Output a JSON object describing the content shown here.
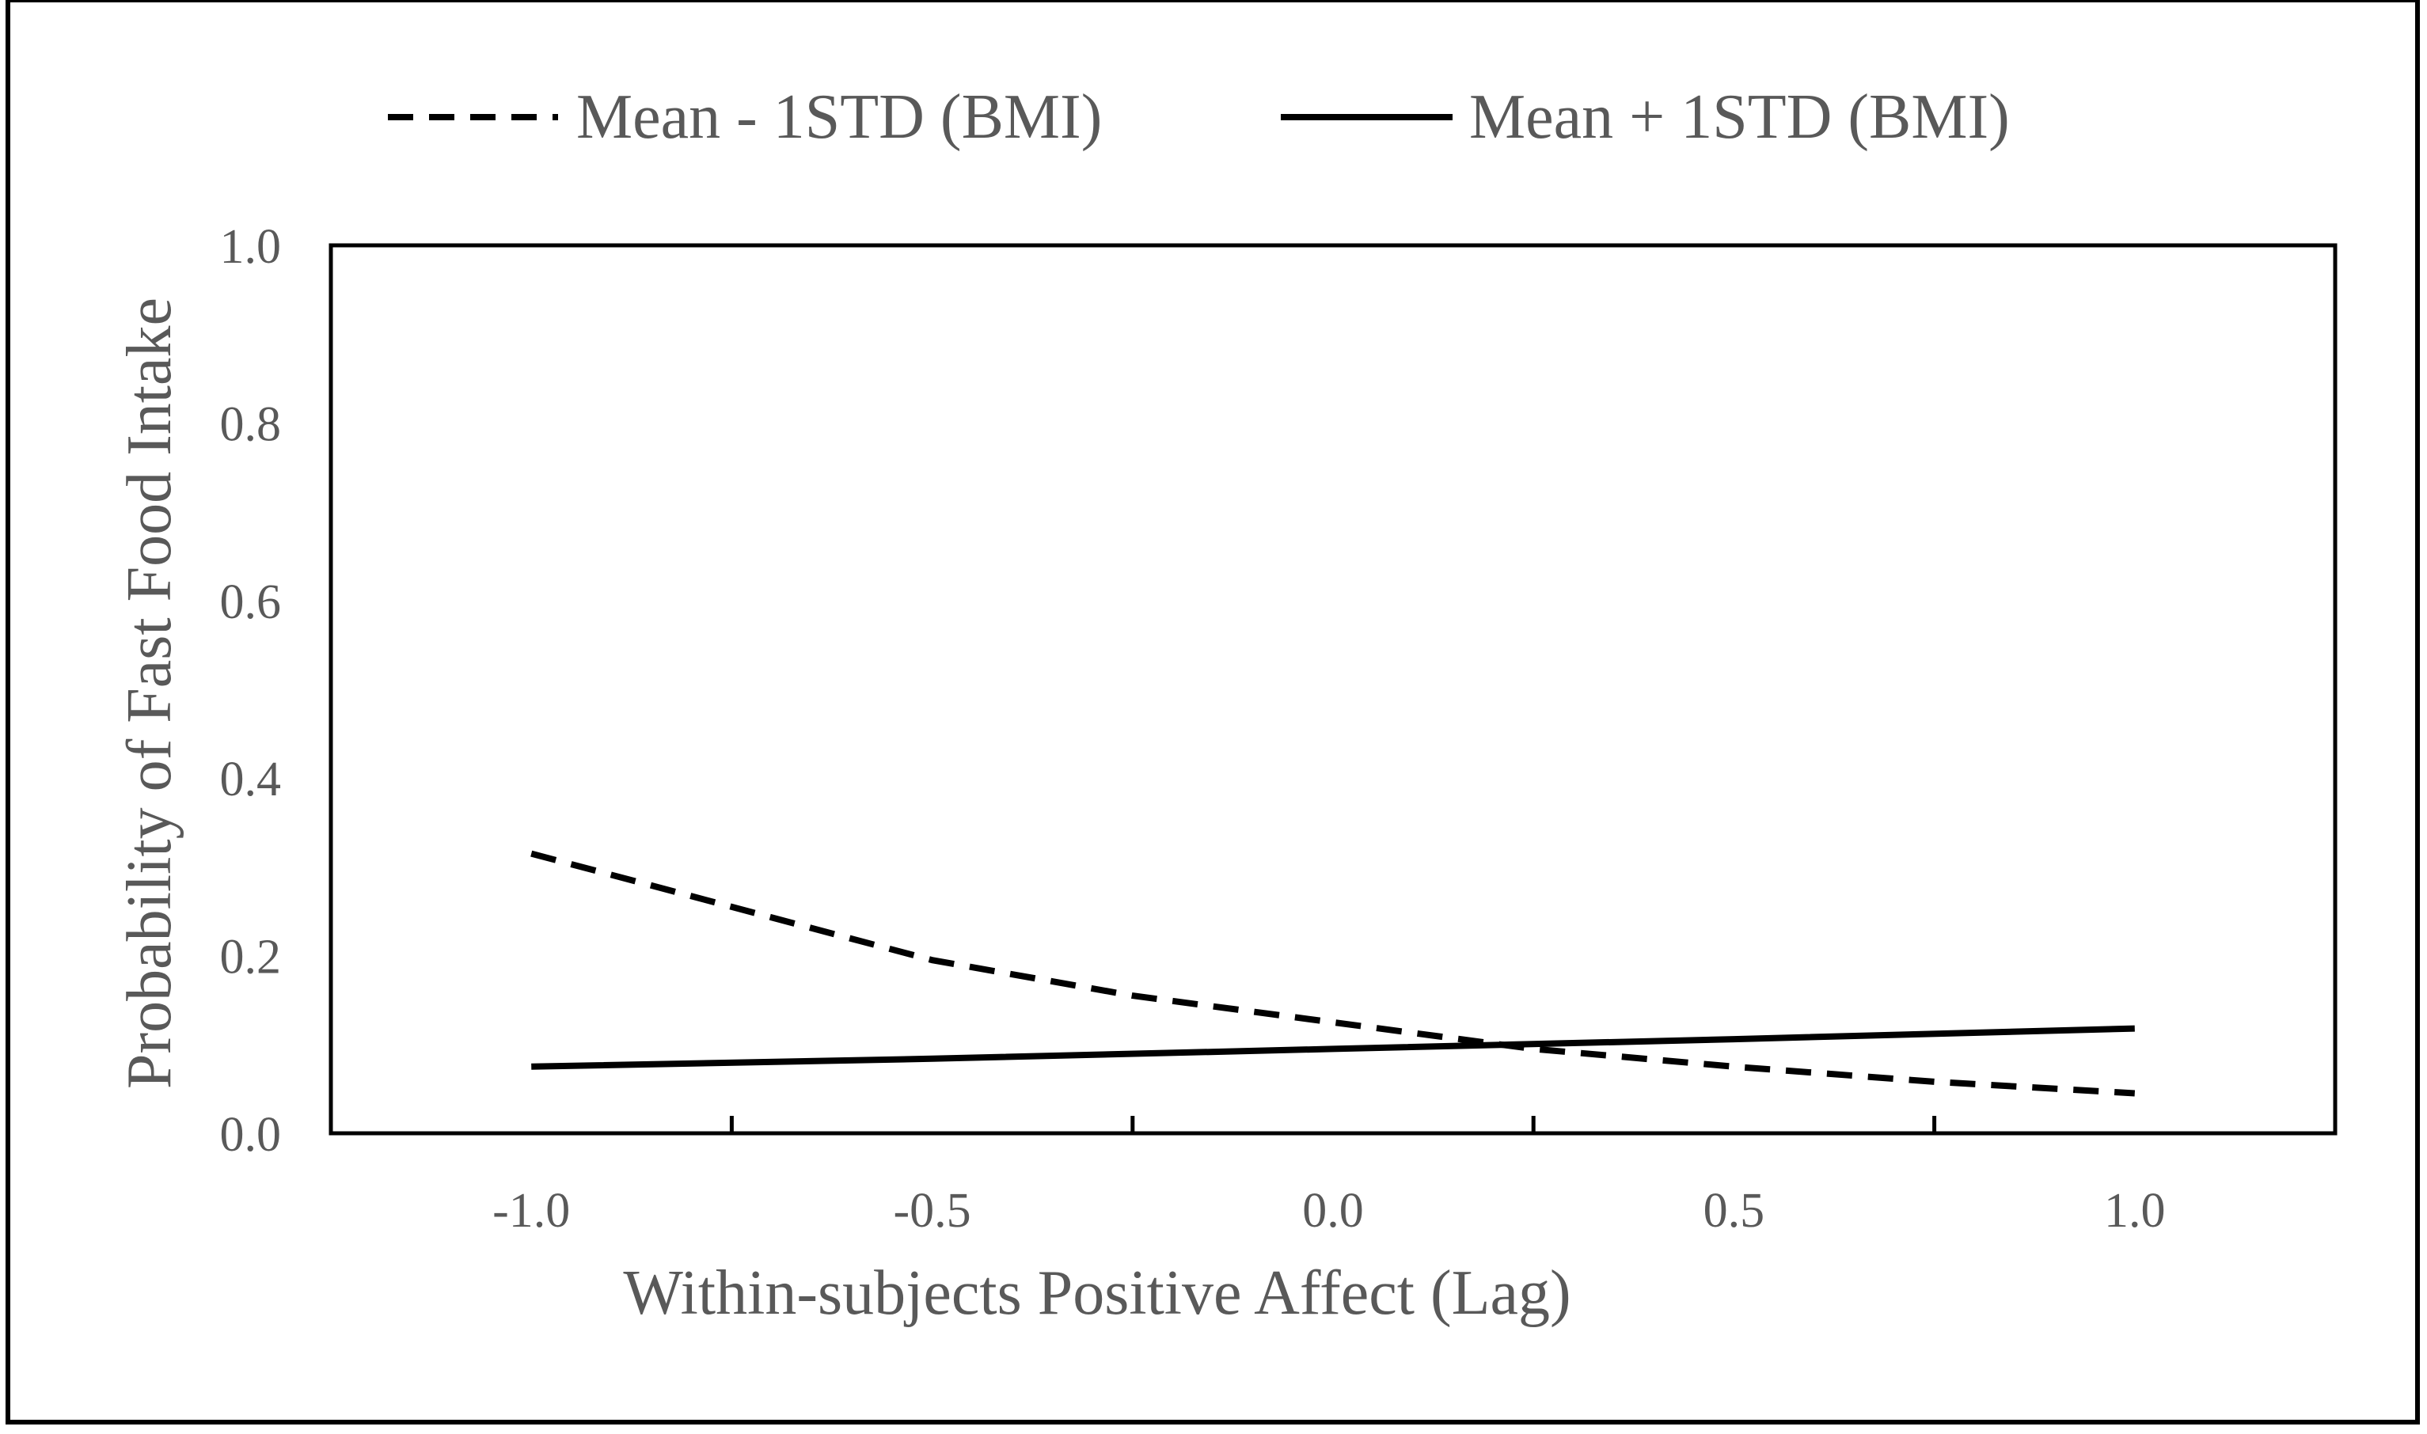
{
  "chart_data": {
    "type": "line",
    "title": "",
    "xlabel": "Within-subjects Positive Affect (Lag)",
    "ylabel": "Probability of Fast Food Intake",
    "xlim": [
      -1.25,
      1.25
    ],
    "ylim": [
      0.0,
      1.0
    ],
    "x_ticks": [
      -1.0,
      -0.5,
      0.0,
      0.5,
      1.0
    ],
    "x_tick_labels": [
      "-1.0",
      "-0.5",
      "0.0",
      "0.5",
      "1.0"
    ],
    "y_ticks": [
      0.0,
      0.2,
      0.4,
      0.6,
      0.8,
      1.0
    ],
    "y_tick_labels": [
      "0.0",
      "0.2",
      "0.4",
      "0.6",
      "0.8",
      "1.0"
    ],
    "grid": false,
    "legend_position": "top",
    "series": [
      {
        "name": "Mean - 1STD (BMI)",
        "style": "dashed",
        "color": "#000000",
        "x": [
          -1.0,
          -0.75,
          -0.5,
          -0.25,
          0.0,
          0.25,
          0.5,
          0.75,
          1.0
        ],
        "y": [
          0.315,
          0.255,
          0.195,
          0.155,
          0.125,
          0.095,
          0.075,
          0.058,
          0.045
        ]
      },
      {
        "name": "Mean + 1STD (BMI)",
        "style": "solid",
        "color": "#000000",
        "x": [
          -1.0,
          -0.5,
          0.0,
          0.5,
          1.0
        ],
        "y": [
          0.075,
          0.084,
          0.095,
          0.106,
          0.118
        ]
      }
    ]
  }
}
